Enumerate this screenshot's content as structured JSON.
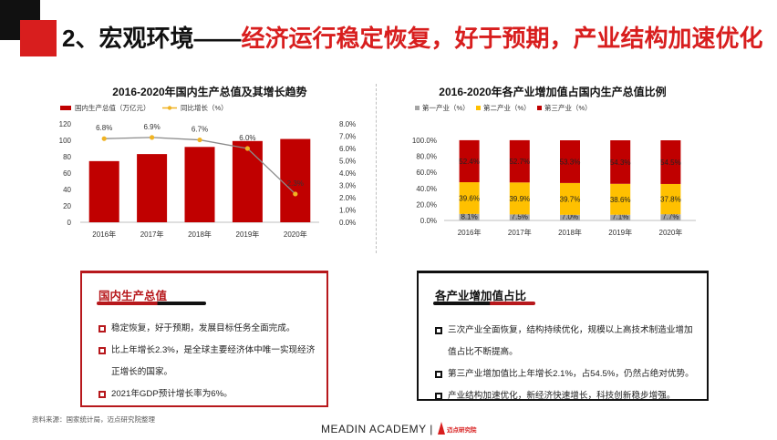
{
  "header": {
    "title_prefix": "2、宏观环境——",
    "title_highlight": "经济运行稳定恢复，好于预期，产业结构加速优化"
  },
  "chart_data": [
    {
      "type": "bar",
      "title": "2016-2020年国内生产总值及其增长趋势",
      "categories": [
        "2016年",
        "2017年",
        "2018年",
        "2019年",
        "2020年"
      ],
      "series": [
        {
          "name": "国内生产总值（万亿元）",
          "values": [
            74.6,
            83.2,
            91.9,
            99.1,
            101.6
          ],
          "axis": "left",
          "color": "#c00000"
        },
        {
          "name": "同比增长（%）",
          "values": [
            6.8,
            6.9,
            6.7,
            6.0,
            2.3
          ],
          "labels": [
            "6.8%",
            "6.9%",
            "6.7%",
            "6.0%",
            "2.3%"
          ],
          "axis": "right",
          "type": "line",
          "color": "#f0b323"
        }
      ],
      "y_left": {
        "min": 0,
        "max": 120,
        "ticks": [
          "0",
          "20",
          "40",
          "60",
          "80",
          "100",
          "120"
        ]
      },
      "y_right": {
        "min": 0,
        "max": 8,
        "ticks": [
          "0.0%",
          "1.0%",
          "2.0%",
          "3.0%",
          "4.0%",
          "5.0%",
          "6.0%",
          "7.0%",
          "8.0%"
        ]
      },
      "legend": "top-left",
      "grid": false
    },
    {
      "type": "bar",
      "stacked": true,
      "title": "2016-2020年各产业增加值占国内生产总值比例",
      "categories": [
        "2016年",
        "2017年",
        "2018年",
        "2019年",
        "2020年"
      ],
      "series": [
        {
          "name": "第一产业（%）",
          "values": [
            8.1,
            7.5,
            7.0,
            7.1,
            7.7
          ],
          "labels": [
            "8.1%",
            "7.5%",
            "7.0%",
            "7.1%",
            "7.7%"
          ],
          "color": "#a5a5a5"
        },
        {
          "name": "第二产业（%）",
          "values": [
            39.6,
            39.9,
            39.7,
            38.6,
            37.8
          ],
          "labels": [
            "39.6%",
            "39.9%",
            "39.7%",
            "38.6%",
            "37.8%"
          ],
          "color": "#ffc000"
        },
        {
          "name": "第三产业（%）",
          "values": [
            52.4,
            52.7,
            53.3,
            54.3,
            54.5
          ],
          "labels": [
            "52.4%",
            "52.7%",
            "53.3%",
            "54.3%",
            "54.5%"
          ],
          "color": "#c00000"
        }
      ],
      "y": {
        "min": 0,
        "max": 100,
        "ticks": [
          "0.0%",
          "20.0%",
          "40.0%",
          "60.0%",
          "80.0%",
          "100.0%"
        ]
      },
      "legend": "top-left",
      "grid": false
    }
  ],
  "cards": {
    "gdp": {
      "heading": "国内生产总值",
      "bullets": [
        "稳定恢复，好于预期，发展目标任务全面完成。",
        "比上年增长2.3%，是全球主要经济体中唯一实现经济",
        "正增长的国家。",
        "2021年GDP预计增长率为6%。"
      ]
    },
    "industry": {
      "heading": "各产业增加值占比",
      "bullets": [
        "三次产业全面恢复，结构持续优化，规模以上高技术制造业增加",
        "值占比不断提高。",
        "第三产业增加值比上年增长2.1%，占54.5%，仍然占绝对优势。",
        "产业结构加速优化，新经济快速增长，科技创新稳步增强。"
      ]
    }
  },
  "footer": {
    "source": "资料来源：国家统计局，迈点研究院整理",
    "brand": "MEADIN ACADEMY |",
    "logo_text": "迈点研究院"
  }
}
